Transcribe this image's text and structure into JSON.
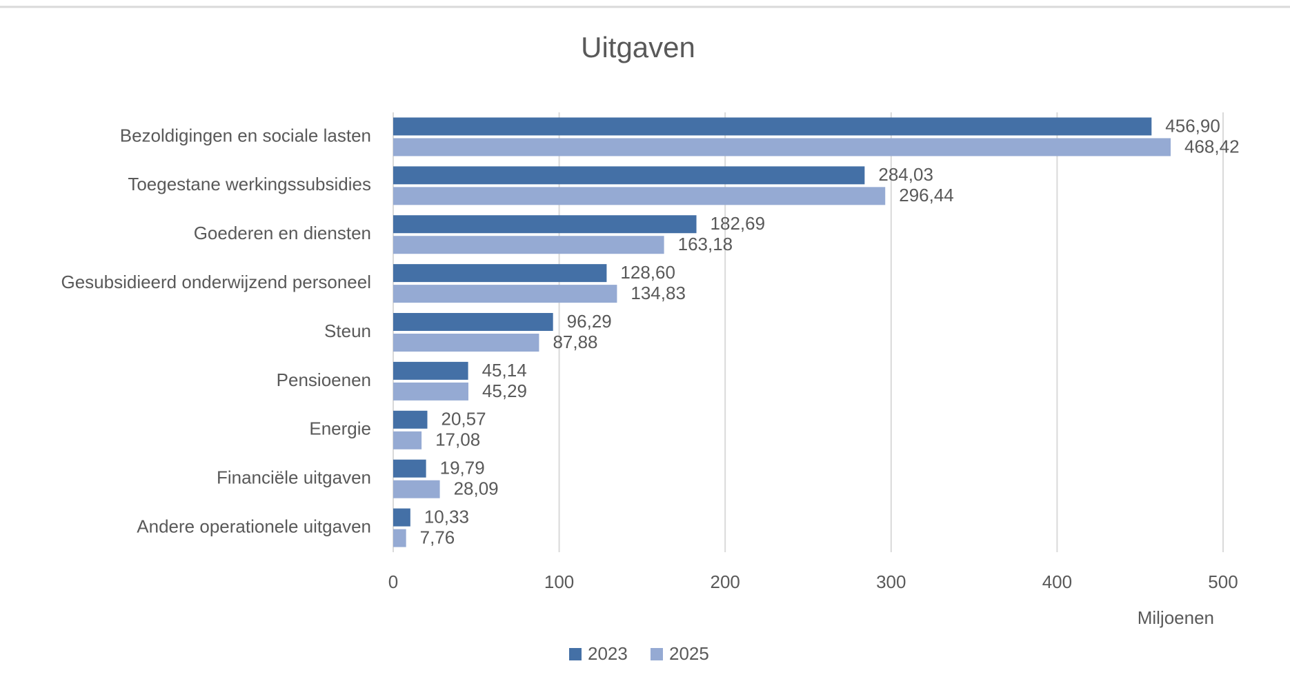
{
  "chart_data": {
    "type": "bar",
    "orientation": "horizontal",
    "title": "Uitgaven",
    "x_label": "Miljoenen",
    "categories": [
      "Bezoldigingen en sociale lasten",
      "Toegestane werkingssubsidies",
      "Goederen en diensten",
      "Gesubsidieerd onderwijzend personeel",
      "Steun",
      "Pensioenen",
      "Energie",
      "Financiële uitgaven",
      "Andere operationele uitgaven"
    ],
    "series": [
      {
        "name": "2023",
        "color": "#4470a6",
        "values": [
          456.9,
          284.03,
          182.69,
          128.6,
          96.29,
          45.14,
          20.57,
          19.79,
          10.33
        ],
        "value_labels": [
          "456,90",
          "284,03",
          "182,69",
          "128,60",
          "96,29",
          "45,14",
          "20,57",
          "19,79",
          "10,33"
        ]
      },
      {
        "name": "2025",
        "color": "#95aad3",
        "values": [
          468.42,
          296.44,
          163.18,
          134.83,
          87.88,
          45.29,
          17.08,
          28.09,
          7.76
        ],
        "value_labels": [
          "468,42",
          "296,44",
          "163,18",
          "134,83",
          "87,88",
          "45,29",
          "17,08",
          "28,09",
          "7,76"
        ]
      }
    ],
    "xlim": [
      0,
      500
    ],
    "xticks": [
      0,
      100,
      200,
      300,
      400,
      500
    ],
    "grid": true,
    "legend": "bottom"
  }
}
